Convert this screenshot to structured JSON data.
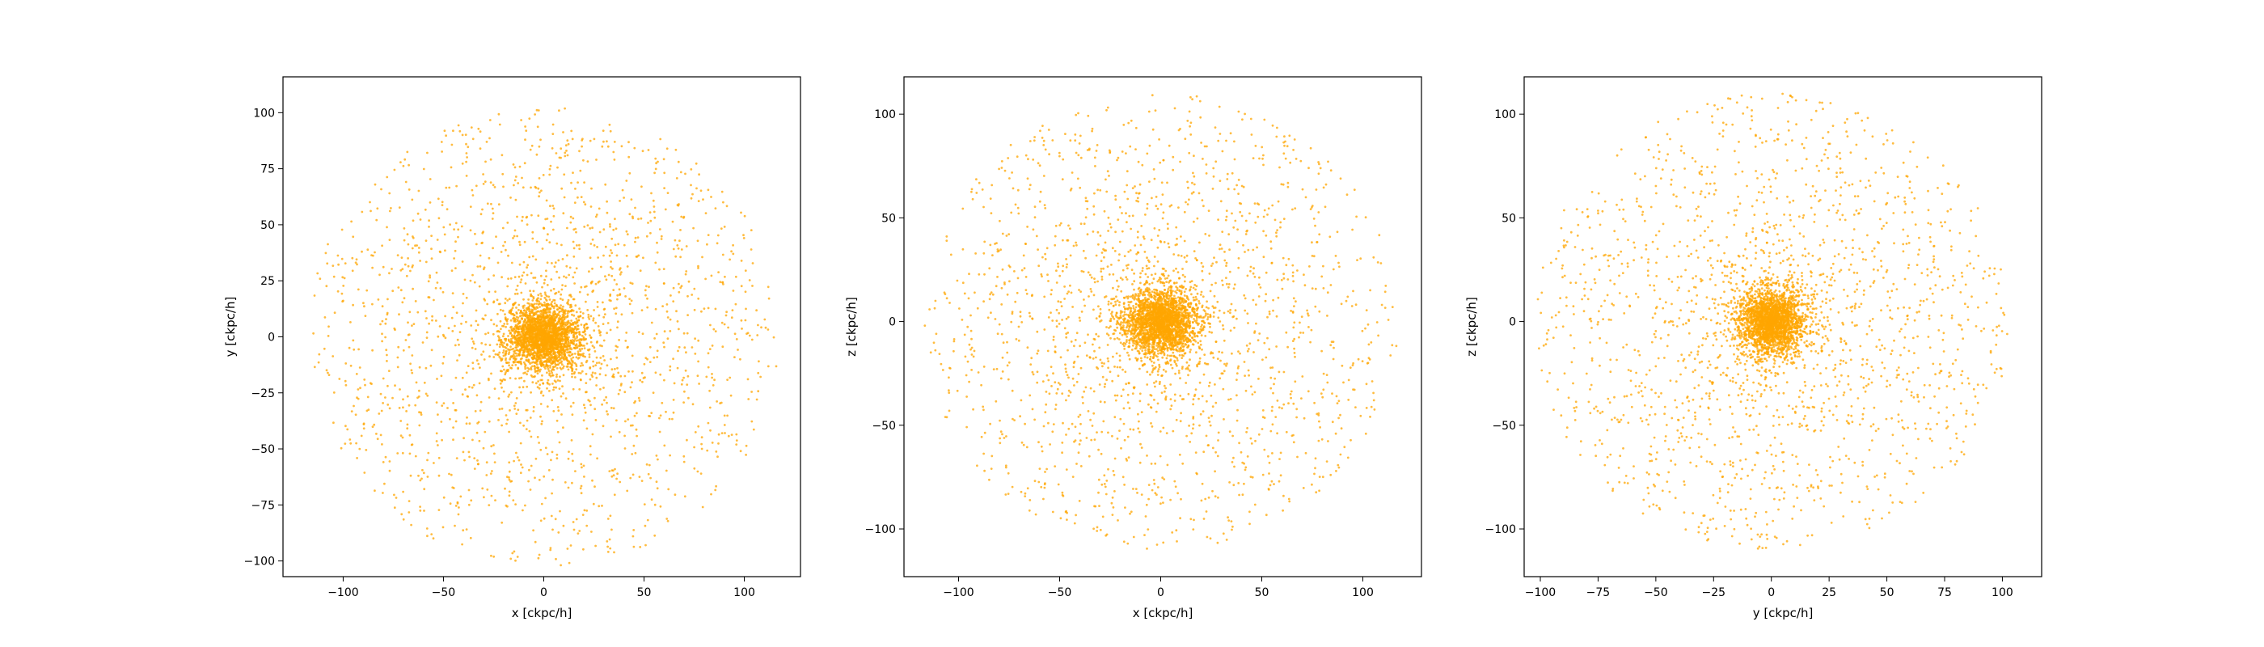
{
  "colors": {
    "points": "#FFA500",
    "frame": "#000000",
    "background": "#ffffff"
  },
  "chart_data": [
    {
      "type": "scatter",
      "xlabel": "x [ckpc/h]",
      "ylabel": "y [ckpc/h]",
      "xlim": [
        -130,
        128
      ],
      "ylim": [
        -107,
        116
      ],
      "xticks": [
        -100,
        -50,
        0,
        50,
        100
      ],
      "yticks": [
        -100,
        -75,
        -50,
        -25,
        0,
        25,
        50,
        75,
        100
      ],
      "grid": false,
      "distribution": {
        "center": [
          0,
          0
        ],
        "core_sigma": [
          9,
          7
        ],
        "halo_extent": [
          118,
          103
        ],
        "points": 4200
      }
    },
    {
      "type": "scatter",
      "xlabel": "x [ckpc/h]",
      "ylabel": "z [ckpc/h]",
      "xlim": [
        -127,
        129
      ],
      "ylim": [
        -123,
        118
      ],
      "xticks": [
        -100,
        -50,
        0,
        50,
        100
      ],
      "yticks": [
        -100,
        -50,
        0,
        50,
        100
      ],
      "grid": false,
      "distribution": {
        "center": [
          0,
          0
        ],
        "core_sigma": [
          9,
          8
        ],
        "halo_extent": [
          118,
          110
        ],
        "points": 4200
      }
    },
    {
      "type": "scatter",
      "xlabel": "y [ckpc/h]",
      "ylabel": "z [ckpc/h]",
      "xlim": [
        -107,
        117
      ],
      "ylim": [
        -123,
        118
      ],
      "xticks": [
        -100,
        -75,
        -50,
        -25,
        0,
        25,
        50,
        75,
        100
      ],
      "yticks": [
        -100,
        -50,
        0,
        50,
        100
      ],
      "grid": false,
      "distribution": {
        "center": [
          0,
          0
        ],
        "core_sigma": [
          7,
          8
        ],
        "halo_extent": [
          103,
          110
        ],
        "points": 4200
      }
    }
  ]
}
